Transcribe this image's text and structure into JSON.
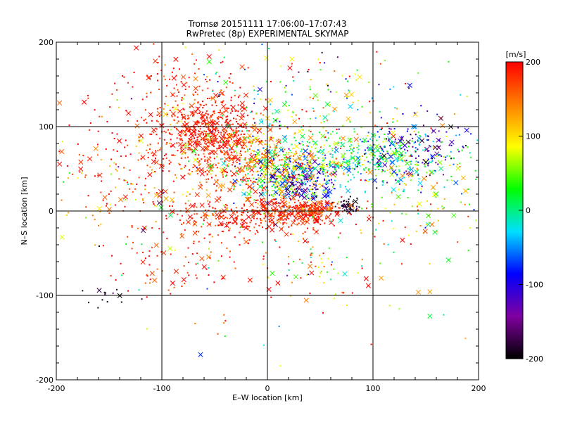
{
  "chart_data": {
    "type": "scatter",
    "title": "Tromsø 20151111 17:06:00–17:07:43",
    "subtitle": "RwPretec (8p) EXPERIMENTAL SKYMAP",
    "xlabel": "E–W location [km]",
    "ylabel": "N–S location [km]",
    "xlim": [
      -200,
      200
    ],
    "ylim": [
      -200,
      200
    ],
    "xticks": [
      "-200",
      "-100",
      "0",
      "100",
      "200"
    ],
    "yticks": [
      "-200",
      "-100",
      "0",
      "100",
      "200"
    ],
    "grid": true,
    "colorbar": {
      "label": "[m/s]",
      "range": [
        -200,
        200
      ],
      "ticks": [
        "200",
        "100",
        "0",
        "-100",
        "-200"
      ],
      "colormap": [
        "#000000",
        "#8000a0",
        "#0000ff",
        "#00e0ff",
        "#00ff00",
        "#ffff00",
        "#ff8000",
        "#ff0000"
      ]
    },
    "markers": [
      "dot",
      "cross"
    ],
    "clusters": [
      {
        "x": -55,
        "y": 95,
        "sx": 22,
        "sy": 18,
        "v": 190,
        "vs": 10,
        "n": 380
      },
      {
        "x": -30,
        "y": 60,
        "sx": 35,
        "sy": 25,
        "v": 170,
        "vs": 25,
        "n": 300
      },
      {
        "x": -80,
        "y": 130,
        "sx": 30,
        "sy": 30,
        "v": 185,
        "vs": 15,
        "n": 160
      },
      {
        "x": 10,
        "y": 50,
        "sx": 30,
        "sy": 20,
        "v": 80,
        "vs": 60,
        "n": 420
      },
      {
        "x": 30,
        "y": 35,
        "sx": 20,
        "sy": 15,
        "v": -90,
        "vs": 50,
        "n": 260
      },
      {
        "x": 90,
        "y": 65,
        "sx": 40,
        "sy": 15,
        "v": 20,
        "vs": 50,
        "n": 360
      },
      {
        "x": 140,
        "y": 70,
        "sx": 30,
        "sy": 20,
        "v": -110,
        "vs": 60,
        "n": 180
      },
      {
        "x": 0,
        "y": -5,
        "sx": 35,
        "sy": 10,
        "v": 185,
        "vs": 20,
        "n": 320
      },
      {
        "x": 40,
        "y": 0,
        "sx": 15,
        "sy": 6,
        "v": 180,
        "vs": 25,
        "n": 160
      },
      {
        "x": 78,
        "y": 5,
        "sx": 5,
        "sy": 4,
        "v": -190,
        "vs": 15,
        "n": 50
      },
      {
        "x": -120,
        "y": 50,
        "sx": 50,
        "sy": 45,
        "v": 170,
        "vs": 50,
        "n": 240
      },
      {
        "x": -80,
        "y": -40,
        "sx": 35,
        "sy": 30,
        "v": 180,
        "vs": 20,
        "n": 120
      },
      {
        "x": 40,
        "y": -60,
        "sx": 20,
        "sy": 20,
        "v": 100,
        "vs": 100,
        "n": 60
      },
      {
        "x": 150,
        "y": 20,
        "sx": 35,
        "sy": 25,
        "v": 80,
        "vs": 60,
        "n": 100
      },
      {
        "x": 30,
        "y": 130,
        "sx": 60,
        "sy": 30,
        "v": 40,
        "vs": 100,
        "n": 180
      },
      {
        "x": -150,
        "y": -100,
        "sx": 15,
        "sy": 6,
        "v": -190,
        "vs": 10,
        "n": 14
      },
      {
        "x": 0,
        "y": 0,
        "sx": 120,
        "sy": 100,
        "v": 100,
        "vs": 120,
        "n": 220
      }
    ]
  }
}
